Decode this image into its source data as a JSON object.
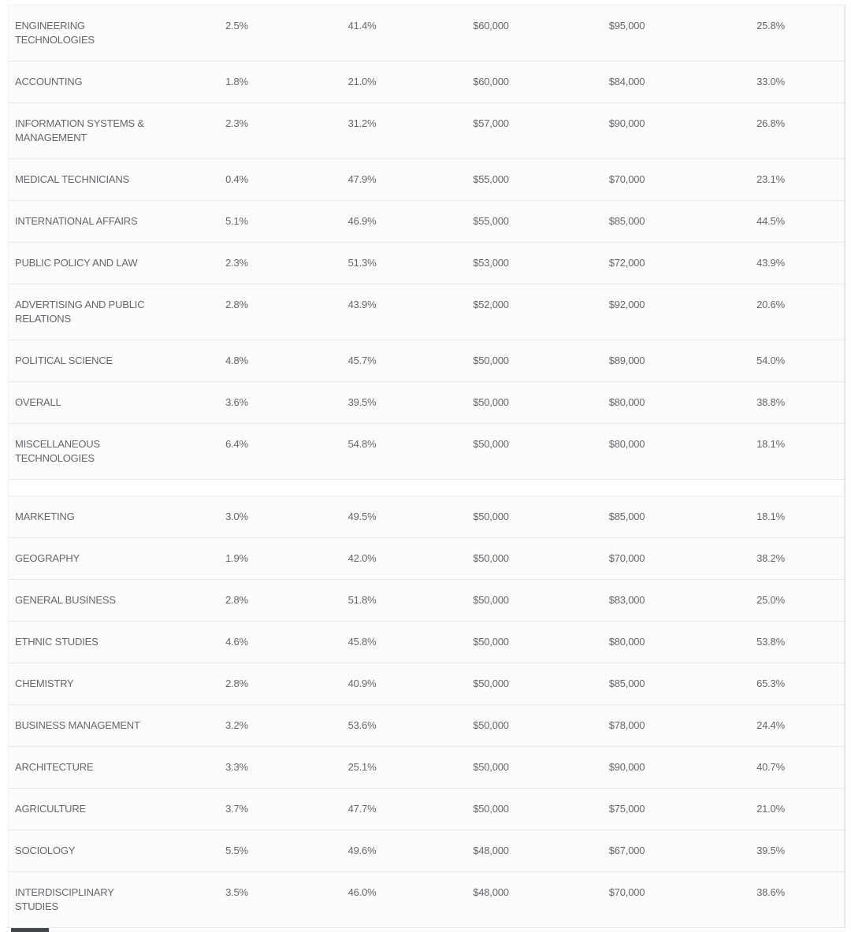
{
  "colors": {
    "row_background": "#fcfcfc",
    "separator": "#e9e9e9",
    "text": "#63676b",
    "partial_bottom_element": "#42464b"
  },
  "chart_data": {
    "type": "table",
    "title": "",
    "header_row_visible": false,
    "columns": [
      "major",
      "value_1_pct",
      "value_2_pct",
      "value_3_usd",
      "value_4_usd",
      "value_5_pct"
    ],
    "sections": [
      {
        "rows": [
          {
            "label": "ENGINEERING TECHNOLOGIES",
            "values": [
              "2.5%",
              "41.4%",
              "$60,000",
              "$95,000",
              "25.8%"
            ]
          },
          {
            "label": "ACCOUNTING",
            "values": [
              "1.8%",
              "21.0%",
              "$60,000",
              "$84,000",
              "33.0%"
            ]
          },
          {
            "label": "INFORMATION SYSTEMS & MANAGEMENT",
            "values": [
              "2.3%",
              "31.2%",
              "$57,000",
              "$90,000",
              "26.8%"
            ]
          },
          {
            "label": "MEDICAL TECHNICIANS",
            "values": [
              "0.4%",
              "47.9%",
              "$55,000",
              "$70,000",
              "23.1%"
            ]
          },
          {
            "label": "INTERNATIONAL AFFAIRS",
            "values": [
              "5.1%",
              "46.9%",
              "$55,000",
              "$85,000",
              "44.5%"
            ]
          },
          {
            "label": "PUBLIC POLICY AND LAW",
            "values": [
              "2.3%",
              "51.3%",
              "$53,000",
              "$72,000",
              "43.9%"
            ]
          },
          {
            "label": "ADVERTISING AND PUBLIC RELATIONS",
            "values": [
              "2.8%",
              "43.9%",
              "$52,000",
              "$92,000",
              "20.6%"
            ]
          },
          {
            "label": "POLITICAL SCIENCE",
            "values": [
              "4.8%",
              "45.7%",
              "$50,000",
              "$89,000",
              "54.0%"
            ]
          },
          {
            "label": "OVERALL",
            "values": [
              "3.6%",
              "39.5%",
              "$50,000",
              "$80,000",
              "38.8%"
            ]
          },
          {
            "label": "MISCELLANEOUS TECHNOLOGIES",
            "values": [
              "6.4%",
              "54.8%",
              "$50,000",
              "$80,000",
              "18.1%"
            ]
          }
        ]
      },
      {
        "rows": [
          {
            "label": "MARKETING",
            "values": [
              "3.0%",
              "49.5%",
              "$50,000",
              "$85,000",
              "18.1%"
            ]
          },
          {
            "label": "GEOGRAPHY",
            "values": [
              "1.9%",
              "42.0%",
              "$50,000",
              "$70,000",
              "38.2%"
            ]
          },
          {
            "label": "GENERAL BUSINESS",
            "values": [
              "2.8%",
              "51.8%",
              "$50,000",
              "$83,000",
              "25.0%"
            ]
          },
          {
            "label": "ETHNIC STUDIES",
            "values": [
              "4.6%",
              "45.8%",
              "$50,000",
              "$80,000",
              "53.8%"
            ]
          },
          {
            "label": "CHEMISTRY",
            "values": [
              "2.8%",
              "40.9%",
              "$50,000",
              "$85,000",
              "65.3%"
            ]
          },
          {
            "label": "BUSINESS MANAGEMENT",
            "values": [
              "3.2%",
              "53.6%",
              "$50,000",
              "$78,000",
              "24.4%"
            ]
          },
          {
            "label": "ARCHITECTURE",
            "values": [
              "3.3%",
              "25.1%",
              "$50,000",
              "$90,000",
              "40.7%"
            ]
          },
          {
            "label": "AGRICULTURE",
            "values": [
              "3.7%",
              "47.7%",
              "$50,000",
              "$75,000",
              "21.0%"
            ]
          },
          {
            "label": "SOCIOLOGY",
            "values": [
              "5.5%",
              "49.6%",
              "$48,000",
              "$67,000",
              "39.5%"
            ]
          },
          {
            "label": "INTERDISCIPLINARY STUDIES",
            "values": [
              "3.5%",
              "46.0%",
              "$48,000",
              "$70,000",
              "38.6%"
            ]
          }
        ]
      }
    ]
  }
}
